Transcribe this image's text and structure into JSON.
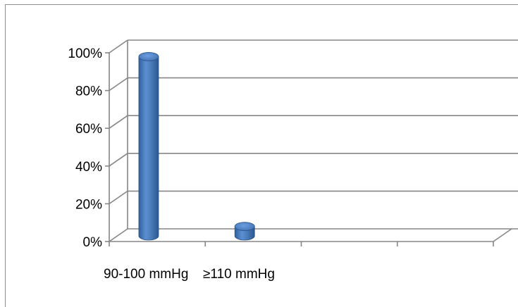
{
  "chart_data": {
    "type": "bar",
    "categories": [
      "90-100 mmHg",
      "≥110 mmHg"
    ],
    "values": [
      95,
      5
    ],
    "ylim": [
      0,
      100
    ],
    "yticks": [
      "0%",
      "20%",
      "40%",
      "60%",
      "80%",
      "100%"
    ],
    "title": "",
    "xlabel": "",
    "ylabel": "",
    "grid": true,
    "style": "3d-cylinder",
    "bar_color": "#4a7ebb",
    "gridline_color": "#868686"
  }
}
